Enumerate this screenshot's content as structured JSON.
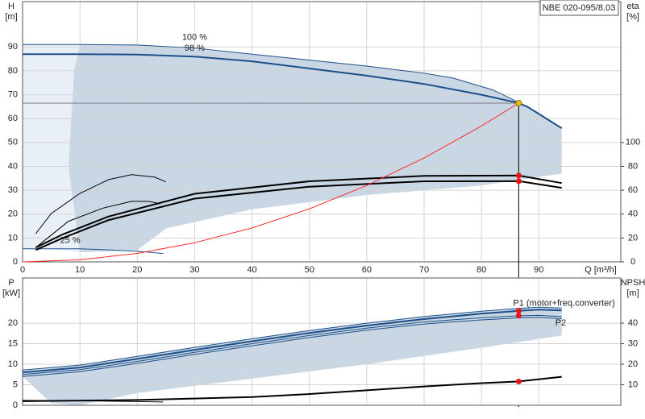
{
  "chart_data": [
    {
      "type": "line",
      "title": "NBE 020-095/8.03",
      "ylabel": "H",
      "yunit": "[m]",
      "y2label": "eta",
      "y2unit": "[%]",
      "xlabel": "Q [m³/h]",
      "xlim": [
        0,
        104.3
      ],
      "xticks": [
        0,
        10,
        20,
        30,
        40,
        50,
        60,
        70,
        80,
        90
      ],
      "ylim": [
        0,
        109
      ],
      "yticks": [
        0,
        10,
        20,
        30,
        40,
        50,
        60,
        70,
        80,
        90
      ],
      "y2lim": [
        0,
        218
      ],
      "y2ticks": [
        0,
        20,
        40,
        60,
        80,
        100
      ],
      "grid": true,
      "bands": [
        {
          "color": "#e8eff7",
          "x": [
            0,
            10,
            9,
            8,
            10,
            5,
            0
          ],
          "values": [
            91,
            91,
            80,
            40,
            4,
            5.5,
            5.5
          ]
        },
        {
          "color": "#c9d7e5",
          "x": [
            10,
            20,
            40,
            60,
            75,
            82,
            88,
            94,
            94,
            80,
            60,
            40,
            25,
            20,
            10,
            8,
            9
          ],
          "values": [
            91,
            90.8,
            87,
            82,
            77,
            72,
            65,
            56,
            37,
            32,
            28,
            22,
            14,
            5,
            4,
            40,
            80
          ]
        }
      ],
      "series": [
        {
          "name": "100 %",
          "color": "#1c4f8a",
          "line_width": 1,
          "x": [
            0,
            10,
            20,
            30,
            40,
            50,
            60,
            70,
            75,
            82,
            88
          ],
          "values": [
            91,
            91,
            90.8,
            89.5,
            87,
            84.5,
            82,
            79,
            77,
            72,
            65
          ]
        },
        {
          "name": "98 %",
          "color": "#1c4f8a",
          "line_width": 2,
          "x": [
            0,
            10,
            20,
            30,
            40,
            50,
            60,
            70,
            80,
            86.5,
            88,
            94
          ],
          "values": [
            87,
            87,
            86.8,
            86,
            84,
            81,
            78,
            74.5,
            70,
            66.5,
            65,
            56
          ]
        },
        {
          "name": "25 %",
          "color": "#1c4f8a",
          "line_width": 1,
          "x": [
            0,
            10,
            20,
            24.5
          ],
          "values": [
            5.5,
            5.5,
            4.5,
            3.5
          ]
        },
        {
          "color": "#000000",
          "line_width": 2,
          "axis": "y2",
          "x": [
            2.3,
            7,
            15,
            30,
            50,
            70,
            86.5,
            94
          ],
          "values": [
            12,
            23,
            38,
            57,
            67.5,
            72,
            72.3,
            66
          ]
        },
        {
          "color": "#000000",
          "line_width": 2,
          "axis": "y2",
          "x": [
            2.3,
            7,
            15,
            30,
            50,
            70,
            86.5,
            94
          ],
          "values": [
            10,
            20,
            35,
            53,
            63,
            67.5,
            67.6,
            62
          ]
        },
        {
          "color": "#000000",
          "line_width": 1,
          "axis": "y2",
          "x": [
            2.3,
            5,
            10,
            15,
            19,
            23,
            25
          ],
          "values": [
            23.6,
            40.5,
            57.4,
            68.9,
            73,
            71,
            67
          ]
        },
        {
          "color": "#000000",
          "line_width": 1,
          "axis": "y2",
          "x": [
            2.3,
            8,
            14,
            19,
            22,
            24
          ],
          "values": [
            12,
            34,
            45,
            50.7,
            50.7,
            48.6
          ]
        },
        {
          "color": "#ff2a2a",
          "line_width": 1,
          "x": [
            0,
            10,
            20,
            30,
            40,
            50,
            60,
            70,
            80,
            86.5
          ],
          "values": [
            0,
            0.89,
            3.55,
            8,
            14.2,
            22.2,
            32,
            43.5,
            56.9,
            66.5
          ]
        }
      ],
      "points": [
        {
          "x": 86.5,
          "y": 66.5,
          "color": "#f5c400",
          "guides": true
        },
        {
          "x": 86.5,
          "y": 72.3,
          "axis": "y2",
          "color": "#e8161b"
        },
        {
          "x": 86.5,
          "y": 67.6,
          "axis": "y2",
          "color": "#e8161b"
        }
      ]
    },
    {
      "type": "line",
      "ylabel": "P",
      "yunit": "[kW]",
      "y2label": "NPSH",
      "y2unit": "[m]",
      "xlim": [
        0,
        104.3
      ],
      "ylim": [
        0,
        31
      ],
      "yticks": [
        0,
        5,
        10,
        15,
        20
      ],
      "y2lim": [
        0,
        62
      ],
      "y2ticks": [
        10,
        20,
        30,
        40
      ],
      "grid": true,
      "bands": [
        {
          "color": "#c9d7e5",
          "x": [
            0,
            10,
            30,
            50,
            70,
            86.5,
            94,
            94,
            80,
            60,
            40,
            20,
            10,
            5,
            0
          ],
          "values": [
            8.6,
            9.8,
            14.1,
            18.2,
            21.6,
            23.6,
            23.7,
            17,
            14,
            10,
            6.5,
            3,
            0,
            0.5,
            7
          ]
        }
      ],
      "series": [
        {
          "name": "P1 (motor+freq.converter)",
          "color": "#1c4f8a",
          "line_width": 2,
          "x": [
            0,
            10,
            20,
            30,
            40,
            50,
            60,
            70,
            80,
            86.5,
            90,
            94
          ],
          "values": [
            8,
            9.2,
            11.3,
            13.5,
            15.6,
            17.6,
            19.4,
            21,
            22.3,
            23,
            23.3,
            23.1
          ]
        },
        {
          "color": "#1c4f8a",
          "line_width": 1,
          "x": [
            0,
            10,
            20,
            30,
            40,
            50,
            60,
            70,
            80,
            86.5,
            90,
            94
          ],
          "values": [
            8.6,
            9.8,
            11.9,
            14.1,
            16.2,
            18.2,
            20,
            21.6,
            22.9,
            23.6,
            23.9,
            23.7
          ]
        },
        {
          "name": "P2",
          "color": "#1c4f8a",
          "line_width": 1,
          "x": [
            0,
            10,
            20,
            30,
            40,
            50,
            60,
            70,
            80,
            86.5,
            90,
            94
          ],
          "values": [
            7.5,
            8.7,
            10.7,
            12.9,
            15,
            17,
            18.8,
            20.3,
            21.3,
            21.8,
            21.9,
            21.6
          ]
        },
        {
          "color": "#1c4f8a",
          "line_width": 1,
          "x": [
            0,
            10,
            20,
            30,
            40,
            50,
            60,
            70,
            80,
            86.5,
            90,
            94
          ],
          "values": [
            7,
            8.2,
            10.2,
            12.4,
            14.5,
            16.5,
            18.3,
            19.8,
            20.8,
            21.3,
            21.4,
            21.1
          ]
        },
        {
          "color": "#000000",
          "line_width": 2,
          "axis": "y2",
          "x": [
            0,
            20,
            40,
            50,
            60,
            70,
            80,
            86.5,
            94
          ],
          "values": [
            2,
            2.6,
            4,
            5.5,
            7.3,
            9.2,
            10.8,
            11.6,
            13.9
          ]
        },
        {
          "color": "#000000",
          "line_width": 1,
          "x": [
            0,
            10,
            20,
            24.5
          ],
          "values": [
            1.2,
            1.1,
            0.9,
            0.8
          ]
        }
      ],
      "points": [
        {
          "x": 86.5,
          "y": 23,
          "color": "#e8161b"
        },
        {
          "x": 86.5,
          "y": 21.8,
          "color": "#e8161b"
        },
        {
          "x": 86.5,
          "y": 11.6,
          "axis": "y2",
          "color": "#e8161b"
        }
      ]
    }
  ]
}
